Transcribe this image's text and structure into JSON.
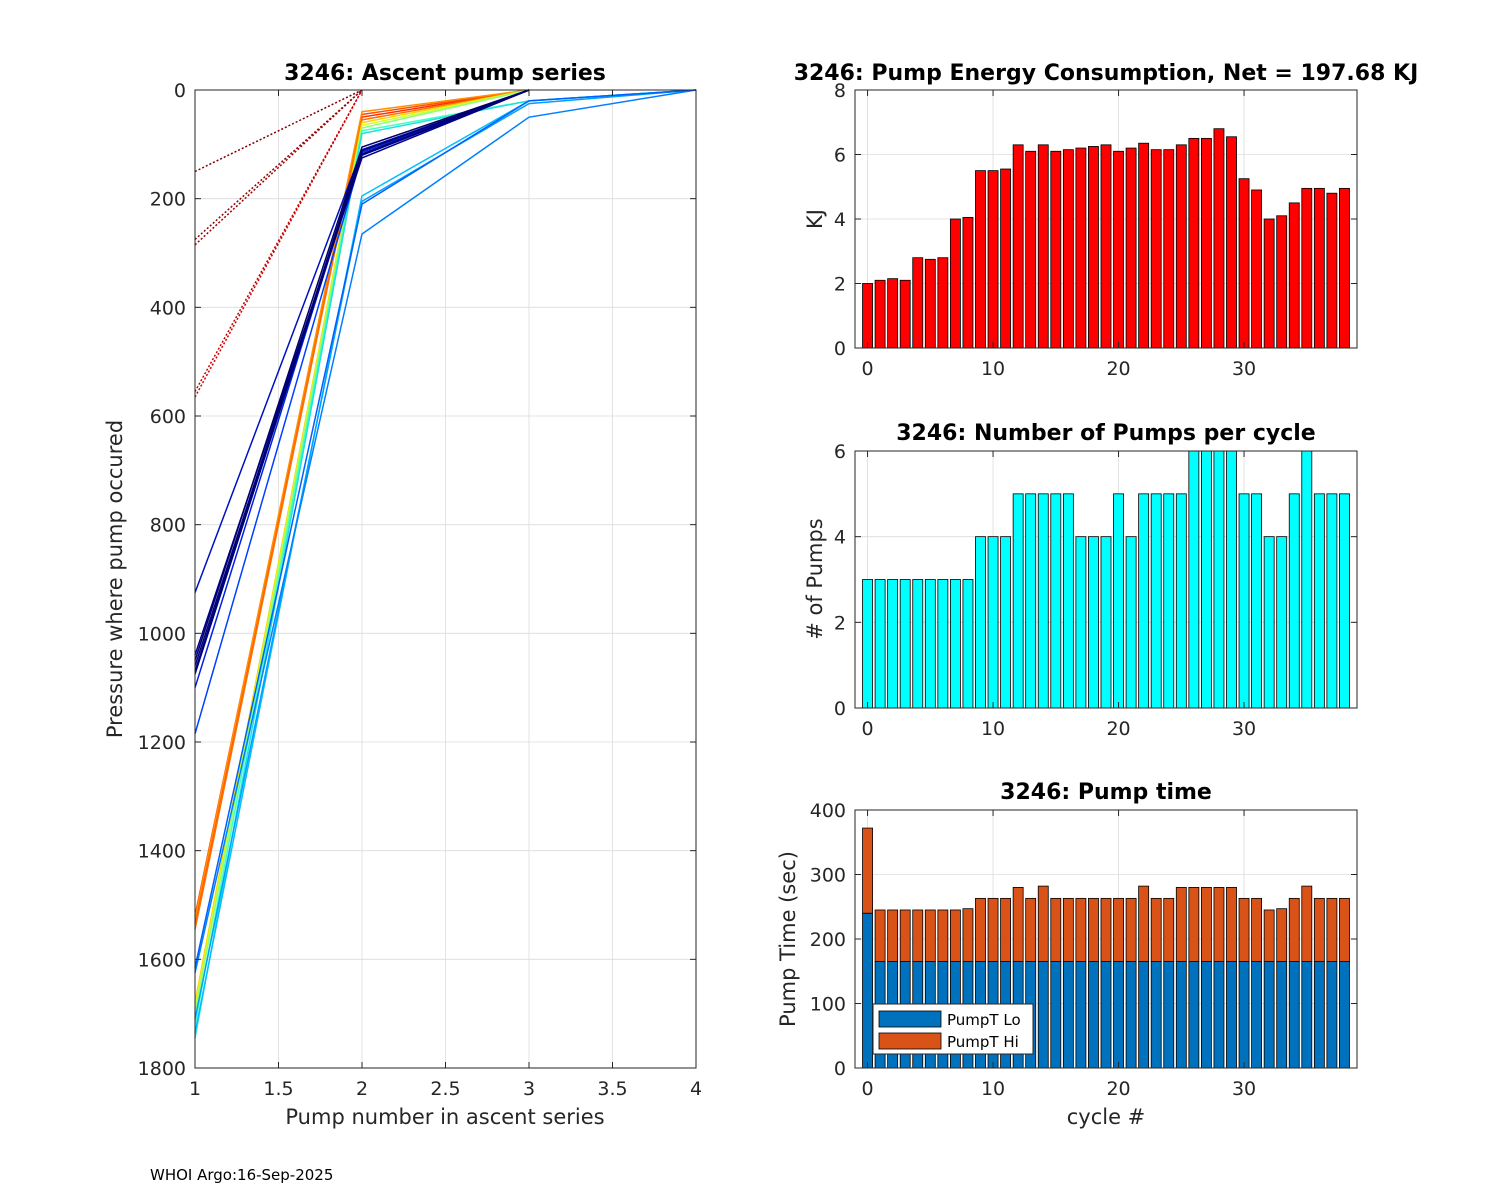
{
  "footer": "WHOI Argo:16-Sep-2025",
  "chart_data": [
    {
      "id": "ascent",
      "type": "line",
      "title": "3246: Ascent pump series",
      "xlabel": "Pump number in ascent series",
      "ylabel": "Pressure where pump occured",
      "xlim": [
        1,
        4
      ],
      "ylim": [
        0,
        1800
      ],
      "y_reversed": true,
      "xticks": [
        1,
        1.5,
        2,
        2.5,
        3,
        3.5,
        4
      ],
      "yticks": [
        0,
        200,
        400,
        600,
        800,
        1000,
        1200,
        1400,
        1600,
        1800
      ],
      "grid": true,
      "series": [
        {
          "name": "c0",
          "color": "#800000",
          "style": "dotted",
          "x": [
            1,
            2
          ],
          "y": [
            150,
            0
          ]
        },
        {
          "name": "c1",
          "color": "#900000",
          "style": "dotted",
          "x": [
            1,
            2
          ],
          "y": [
            275,
            0
          ]
        },
        {
          "name": "c2",
          "color": "#a00000",
          "style": "dotted",
          "x": [
            1,
            2
          ],
          "y": [
            285,
            0
          ]
        },
        {
          "name": "c3",
          "color": "#c00000",
          "style": "dotted",
          "x": [
            1,
            2
          ],
          "y": [
            555,
            0
          ]
        },
        {
          "name": "c4",
          "color": "#d00000",
          "style": "dotted",
          "x": [
            1,
            2
          ],
          "y": [
            565,
            0
          ]
        },
        {
          "name": "c5",
          "color": "#ff3000",
          "style": "solid",
          "x": [
            1,
            2,
            3
          ],
          "y": [
            1520,
            50,
            0
          ]
        },
        {
          "name": "c6",
          "color": "#ff5000",
          "style": "solid",
          "x": [
            1,
            2,
            3
          ],
          "y": [
            1535,
            45,
            0
          ]
        },
        {
          "name": "c7",
          "color": "#ff7000",
          "style": "solid",
          "x": [
            1,
            2,
            3
          ],
          "y": [
            1545,
            55,
            0
          ]
        },
        {
          "name": "c8",
          "color": "#ff9000",
          "style": "solid",
          "x": [
            1,
            2,
            3
          ],
          "y": [
            1525,
            40,
            0
          ]
        },
        {
          "name": "c9",
          "color": "#ffd000",
          "style": "solid",
          "x": [
            1,
            2,
            3
          ],
          "y": [
            1680,
            60,
            0
          ]
        },
        {
          "name": "c10",
          "color": "#d0ff30",
          "style": "solid",
          "x": [
            1,
            2,
            3
          ],
          "y": [
            1690,
            65,
            0
          ]
        },
        {
          "name": "c11",
          "color": "#90ff70",
          "style": "solid",
          "x": [
            1,
            2,
            3
          ],
          "y": [
            1700,
            70,
            0
          ]
        },
        {
          "name": "c12",
          "color": "#40ffc0",
          "style": "solid",
          "x": [
            1,
            2,
            3,
            4
          ],
          "y": [
            1720,
            75,
            20,
            0
          ]
        },
        {
          "name": "c13",
          "color": "#20e0e0",
          "style": "solid",
          "x": [
            1,
            2,
            3,
            4
          ],
          "y": [
            1745,
            80,
            20,
            0
          ]
        },
        {
          "name": "c14",
          "color": "#00c0ff",
          "style": "solid",
          "x": [
            1,
            2,
            3,
            4
          ],
          "y": [
            1735,
            195,
            20,
            0
          ]
        },
        {
          "name": "c15",
          "color": "#00a0ff",
          "style": "solid",
          "x": [
            1,
            2,
            3,
            4
          ],
          "y": [
            1710,
            205,
            25,
            0
          ]
        },
        {
          "name": "c16",
          "color": "#0080ff",
          "style": "solid",
          "x": [
            1,
            2,
            3,
            4
          ],
          "y": [
            1625,
            265,
            50,
            0
          ]
        },
        {
          "name": "c17",
          "color": "#0060ff",
          "style": "solid",
          "x": [
            1,
            2,
            3,
            4
          ],
          "y": [
            1615,
            210,
            20,
            0
          ]
        },
        {
          "name": "c18",
          "color": "#0040ff",
          "style": "solid",
          "x": [
            1,
            2,
            3
          ],
          "y": [
            1185,
            120,
            0
          ]
        },
        {
          "name": "c19",
          "color": "#0020e0",
          "style": "solid",
          "x": [
            1,
            2,
            3
          ],
          "y": [
            1100,
            115,
            0
          ]
        },
        {
          "name": "c20",
          "color": "#0010c0",
          "style": "solid",
          "x": [
            1,
            2,
            3
          ],
          "y": [
            925,
            110,
            0
          ]
        },
        {
          "name": "c21",
          "color": "#000090",
          "style": "solid",
          "x": [
            1,
            2,
            3
          ],
          "y": [
            1040,
            125,
            0
          ]
        },
        {
          "name": "c22",
          "color": "#000080",
          "style": "solid",
          "x": [
            1,
            2,
            3
          ],
          "y": [
            1060,
            118,
            0
          ]
        },
        {
          "name": "c23",
          "color": "#000070",
          "style": "solid",
          "x": [
            1,
            2,
            3
          ],
          "y": [
            1070,
            112,
            0
          ]
        },
        {
          "name": "c24",
          "color": "#00007a",
          "style": "solid",
          "x": [
            1,
            2,
            3
          ],
          "y": [
            1075,
            120,
            0
          ]
        },
        {
          "name": "c25",
          "color": "#000068",
          "style": "solid",
          "x": [
            1,
            2,
            3
          ],
          "y": [
            1050,
            105,
            0
          ]
        }
      ]
    },
    {
      "id": "energy",
      "type": "bar",
      "title": "3246: Pump Energy Consumption,  Net = 197.68 KJ",
      "xlabel": "",
      "ylabel": "KJ",
      "xlim": [
        -1,
        39
      ],
      "ylim": [
        0,
        8
      ],
      "xticks": [
        0,
        10,
        20,
        30
      ],
      "yticks": [
        0,
        2,
        4,
        6,
        8
      ],
      "color": "#ff0000",
      "x": [
        0,
        1,
        2,
        3,
        4,
        5,
        6,
        7,
        8,
        9,
        10,
        11,
        12,
        13,
        14,
        15,
        16,
        17,
        18,
        19,
        20,
        21,
        22,
        23,
        24,
        25,
        26,
        27,
        28,
        29,
        30,
        31,
        32,
        33,
        34,
        35,
        36,
        37,
        38
      ],
      "values": [
        2.0,
        2.1,
        2.15,
        2.1,
        2.8,
        2.75,
        2.8,
        4.0,
        4.05,
        5.5,
        5.5,
        5.55,
        6.3,
        6.1,
        6.3,
        6.1,
        6.15,
        6.2,
        6.25,
        6.3,
        6.1,
        6.2,
        6.35,
        6.15,
        6.15,
        6.3,
        6.5,
        6.5,
        6.8,
        6.55,
        5.25,
        4.9,
        4.0,
        4.1,
        4.5,
        4.95,
        4.95,
        4.8,
        4.95
      ]
    },
    {
      "id": "pumps",
      "type": "bar",
      "title": "3246: Number of Pumps per cycle",
      "xlabel": "",
      "ylabel": "# of Pumps",
      "xlim": [
        -1,
        39
      ],
      "ylim": [
        0,
        6
      ],
      "xticks": [
        0,
        10,
        20,
        30
      ],
      "yticks": [
        0,
        2,
        4,
        6
      ],
      "color": "#00ffff",
      "x": [
        0,
        1,
        2,
        3,
        4,
        5,
        6,
        7,
        8,
        9,
        10,
        11,
        12,
        13,
        14,
        15,
        16,
        17,
        18,
        19,
        20,
        21,
        22,
        23,
        24,
        25,
        26,
        27,
        28,
        29,
        30,
        31,
        32,
        33,
        34,
        35,
        36,
        37,
        38
      ],
      "values": [
        3,
        3,
        3,
        3,
        3,
        3,
        3,
        3,
        3,
        4,
        4,
        4,
        5,
        5,
        5,
        5,
        5,
        4,
        4,
        4,
        5,
        4,
        5,
        5,
        5,
        5,
        6,
        6,
        6,
        6,
        5,
        5,
        4,
        4,
        5,
        6,
        5,
        5,
        5
      ]
    },
    {
      "id": "pumptime",
      "type": "bar",
      "stacked": true,
      "title": "3246: Pump time",
      "xlabel": "cycle #",
      "ylabel": "Pump Time (sec)",
      "xlim": [
        -1,
        39
      ],
      "ylim": [
        0,
        400
      ],
      "xticks": [
        0,
        10,
        20,
        30
      ],
      "yticks": [
        0,
        100,
        200,
        300,
        400
      ],
      "legend_position": "bottom-left",
      "x": [
        0,
        1,
        2,
        3,
        4,
        5,
        6,
        7,
        8,
        9,
        10,
        11,
        12,
        13,
        14,
        15,
        16,
        17,
        18,
        19,
        20,
        21,
        22,
        23,
        24,
        25,
        26,
        27,
        28,
        29,
        30,
        31,
        32,
        33,
        34,
        35,
        36,
        37,
        38
      ],
      "series": [
        {
          "name": "PumpT Lo",
          "color": "#0072bd",
          "values": [
            240,
            165,
            165,
            165,
            165,
            165,
            165,
            165,
            165,
            165,
            165,
            165,
            165,
            165,
            165,
            165,
            165,
            165,
            165,
            165,
            165,
            165,
            165,
            165,
            165,
            165,
            165,
            165,
            165,
            165,
            165,
            165,
            165,
            165,
            165,
            165,
            165,
            165,
            165
          ]
        },
        {
          "name": "PumpT Hi",
          "color": "#d95319",
          "values": [
            132,
            80,
            80,
            80,
            80,
            80,
            80,
            80,
            82,
            98,
            98,
            98,
            115,
            98,
            117,
            98,
            98,
            98,
            98,
            98,
            98,
            98,
            117,
            98,
            98,
            115,
            115,
            115,
            115,
            115,
            98,
            98,
            80,
            82,
            98,
            117,
            98,
            98,
            98
          ]
        }
      ]
    }
  ]
}
